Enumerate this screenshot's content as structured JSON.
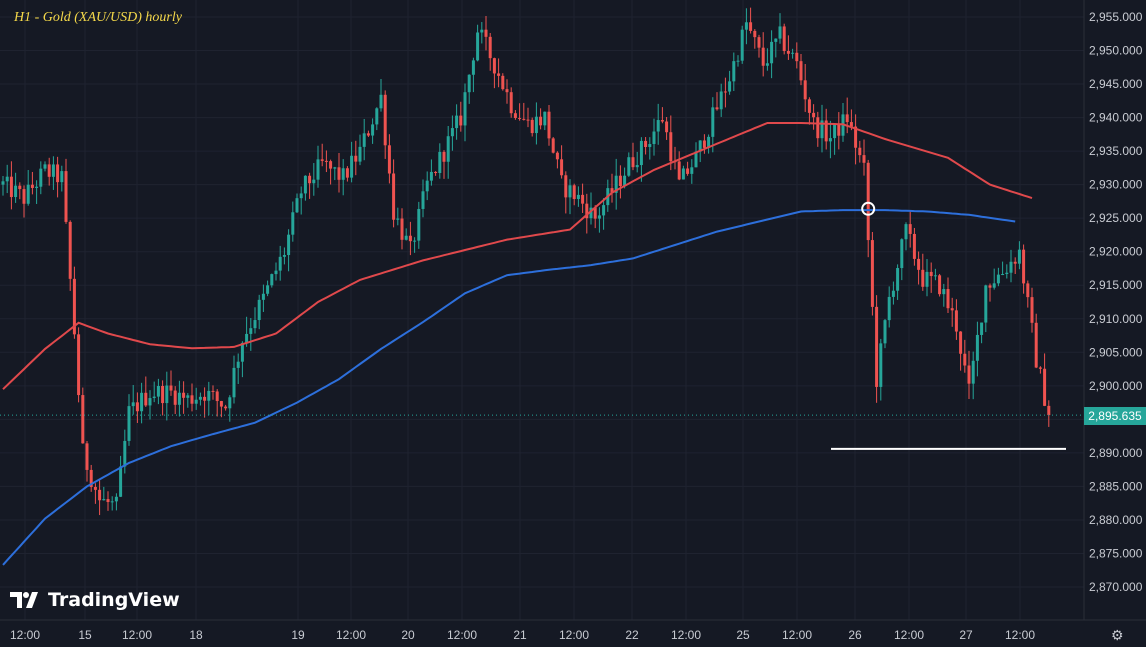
{
  "title": "H1 - Gold (XAU/USD) hourly",
  "logo": {
    "text": "TradingView",
    "icon": "tradingview-logo-icon"
  },
  "settings_icon": "gear-icon",
  "last_price_label": "2,895.635",
  "colors": {
    "background": "#151924",
    "up": "#26a69a",
    "down": "#ef5350",
    "ma_fast": "#e0494c",
    "ma_slow": "#2d6fdb",
    "support": "#ffffff",
    "title": "#f5d94a"
  },
  "chart_data": {
    "type": "candlestick",
    "timeframe": "H1",
    "x_tick_labels": [
      "12:00",
      "15",
      "12:00",
      "18",
      "19",
      "12:00",
      "20",
      "12:00",
      "21",
      "12:00",
      "22",
      "12:00",
      "25",
      "12:00",
      "26",
      "12:00",
      "27",
      "12:00"
    ],
    "y_tick_labels": [
      "2,955.000",
      "2,950.000",
      "2,945.000",
      "2,940.000",
      "2,935.000",
      "2,930.000",
      "2,925.000",
      "2,920.000",
      "2,915.000",
      "2,910.000",
      "2,905.000",
      "2,900.000",
      "2,895.000",
      "2,890.000",
      "2,885.000",
      "2,880.000",
      "2,875.000",
      "2,870.000"
    ],
    "ylim": [
      2868.3,
      2957.1
    ],
    "bar_count": 250,
    "last_price": 2895.635,
    "close_waypoints": [
      [
        0,
        2930
      ],
      [
        5,
        2928
      ],
      [
        10,
        2932
      ],
      [
        14,
        2931
      ],
      [
        17,
        2908
      ],
      [
        19,
        2890
      ],
      [
        23,
        2883
      ],
      [
        27,
        2882
      ],
      [
        30,
        2896
      ],
      [
        35,
        2899
      ],
      [
        40,
        2899
      ],
      [
        44,
        2898
      ],
      [
        48,
        2899
      ],
      [
        53,
        2897
      ],
      [
        57,
        2907
      ],
      [
        62,
        2913
      ],
      [
        67,
        2920
      ],
      [
        71,
        2929
      ],
      [
        76,
        2933
      ],
      [
        81,
        2931
      ],
      [
        85,
        2935
      ],
      [
        90,
        2943
      ],
      [
        93,
        2926
      ],
      [
        97,
        2920
      ],
      [
        101,
        2930
      ],
      [
        105,
        2935
      ],
      [
        109,
        2940
      ],
      [
        113,
        2953
      ],
      [
        117,
        2948
      ],
      [
        121,
        2942
      ],
      [
        125,
        2939
      ],
      [
        129,
        2940
      ],
      [
        133,
        2930
      ],
      [
        137,
        2928
      ],
      [
        141,
        2925
      ],
      [
        145,
        2929
      ],
      [
        149,
        2933
      ],
      [
        153,
        2936
      ],
      [
        157,
        2940
      ],
      [
        161,
        2930
      ],
      [
        165,
        2934
      ],
      [
        169,
        2940
      ],
      [
        173,
        2946
      ],
      [
        177,
        2954
      ],
      [
        181,
        2948
      ],
      [
        185,
        2952
      ],
      [
        189,
        2948
      ],
      [
        193,
        2939
      ],
      [
        197,
        2937
      ],
      [
        201,
        2940
      ],
      [
        205,
        2932
      ],
      [
        208,
        2901
      ],
      [
        211,
        2913
      ],
      [
        215,
        2923
      ],
      [
        219,
        2916
      ],
      [
        223,
        2915
      ],
      [
        227,
        2909
      ],
      [
        230,
        2899
      ],
      [
        234,
        2915
      ],
      [
        238,
        2917
      ],
      [
        242,
        2920
      ],
      [
        246,
        2904
      ],
      [
        249,
        2895.635
      ]
    ],
    "support_level": 2890.6,
    "highlight_point": {
      "bar": 206,
      "price": 2926.4
    },
    "ma_fast_waypoints": [
      [
        0,
        2899.5
      ],
      [
        10,
        2905.5
      ],
      [
        18,
        2909.4
      ],
      [
        25,
        2907.8
      ],
      [
        35,
        2906.2
      ],
      [
        45,
        2905.6
      ],
      [
        55,
        2905.8
      ],
      [
        65,
        2907.8
      ],
      [
        75,
        2912.5
      ],
      [
        85,
        2915.8
      ],
      [
        100,
        2918.7
      ],
      [
        120,
        2921.8
      ],
      [
        135,
        2923.3
      ],
      [
        145,
        2928.8
      ],
      [
        155,
        2932.2
      ],
      [
        165,
        2934.8
      ],
      [
        175,
        2937.4
      ],
      [
        182,
        2939.2
      ],
      [
        190,
        2939.2
      ],
      [
        200,
        2939.0
      ],
      [
        210,
        2936.8
      ],
      [
        225,
        2934.0
      ],
      [
        235,
        2930.0
      ],
      [
        245,
        2928.0
      ]
    ],
    "ma_slow_waypoints": [
      [
        0,
        2873.3
      ],
      [
        10,
        2880.2
      ],
      [
        20,
        2885.0
      ],
      [
        30,
        2888.5
      ],
      [
        40,
        2891.0
      ],
      [
        50,
        2892.8
      ],
      [
        60,
        2894.5
      ],
      [
        70,
        2897.5
      ],
      [
        80,
        2901.0
      ],
      [
        90,
        2905.5
      ],
      [
        100,
        2909.5
      ],
      [
        110,
        2913.8
      ],
      [
        120,
        2916.5
      ],
      [
        130,
        2917.3
      ],
      [
        140,
        2918.0
      ],
      [
        150,
        2919.0
      ],
      [
        160,
        2921.0
      ],
      [
        170,
        2923.0
      ],
      [
        180,
        2924.5
      ],
      [
        190,
        2926.0
      ],
      [
        200,
        2926.2
      ],
      [
        210,
        2926.2
      ],
      [
        220,
        2926.0
      ],
      [
        230,
        2925.5
      ],
      [
        241,
        2924.5
      ]
    ]
  }
}
